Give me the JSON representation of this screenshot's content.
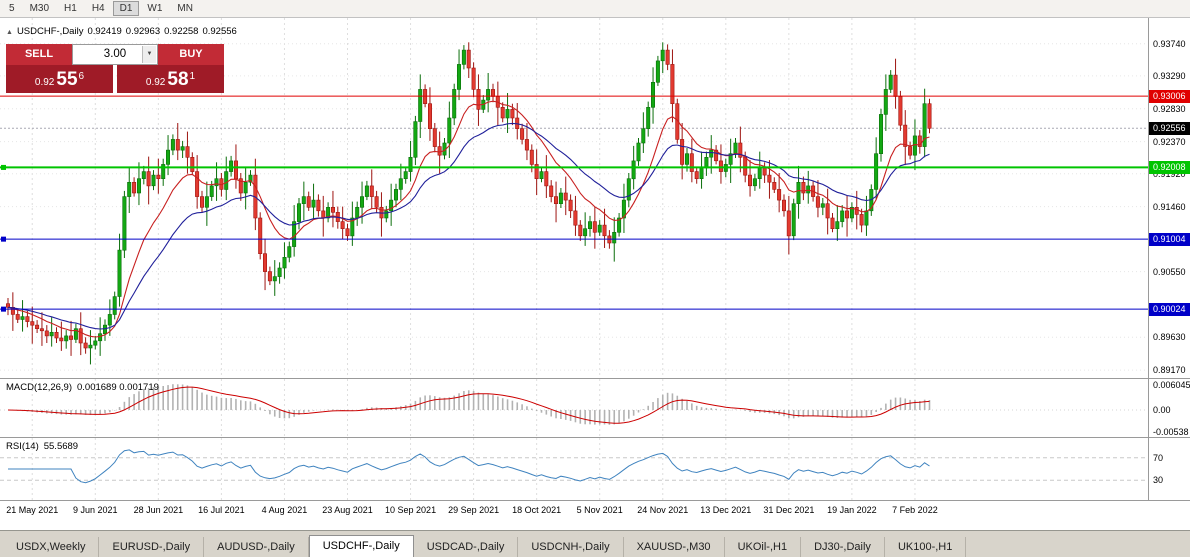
{
  "toolbar": {
    "timeframes": [
      "5",
      "M30",
      "H1",
      "H4",
      "D1",
      "W1",
      "MN"
    ],
    "active": "D1"
  },
  "icons": {
    "trade_panel_toggle": "▲",
    "lot_dropdown": "▼"
  },
  "header": {
    "symbol": "USDCHF-,Daily",
    "open": "0.92419",
    "high": "0.92963",
    "low": "0.92258",
    "close": "0.92556"
  },
  "trade_panel": {
    "sell_label": "SELL",
    "buy_label": "BUY",
    "lot": "3.00",
    "sell_price": {
      "prefix": "0.92",
      "big": "55",
      "sup": "6"
    },
    "buy_price": {
      "prefix": "0.92",
      "big": "58",
      "sup": "1"
    },
    "button_color": "#c22b36",
    "price_color": "#9f1b27"
  },
  "macd": {
    "name": "MACD(12,26,9)",
    "values_text": "0.001689 0.001719",
    "fast": 12,
    "slow": 26,
    "signal": 9,
    "axis_labels": [
      "0.006045",
      "0.00",
      "-0.00538"
    ],
    "axis_values": [
      0.006045,
      0,
      -0.00538
    ],
    "histogram_color": "#b2b2b2",
    "signal_color": "#cc0000"
  },
  "rsi": {
    "name": "RSI(14)",
    "value_text": "55.5689",
    "period": 14,
    "levels": [
      70,
      30
    ],
    "color": "#3f83bf"
  },
  "tabs": {
    "items": [
      "USDX,Weekly",
      "EURUSD-,Daily",
      "AUDUSD-,Daily",
      "USDCHF-,Daily",
      "USDCAD-,Daily",
      "USDCNH-,Daily",
      "XAUUSD-,M30",
      "UKOil-,H1",
      "DJ30-,Daily",
      "UK100-,H1"
    ],
    "active_index": 3
  },
  "chart_data": {
    "type": "candlestick",
    "symbol": "USDCHF-",
    "timeframe": "Daily",
    "current_price": {
      "value": 0.92556,
      "label": "0.92556",
      "badge_color": "#000000"
    },
    "levels": [
      {
        "value": 0.93006,
        "label": "0.93006",
        "color": "#e00000",
        "thickness": 1,
        "left_marker": false
      },
      {
        "value": 0.92008,
        "label": "0.92008",
        "color": "#00c400",
        "thickness": 2,
        "left_marker": true
      },
      {
        "value": 0.91004,
        "label": "0.91004",
        "color": "#0000c8",
        "thickness": 1,
        "left_marker": true
      },
      {
        "value": 0.90024,
        "label": "0.90024",
        "color": "#0000c8",
        "thickness": 1,
        "left_marker": true
      }
    ],
    "y_axis": {
      "ticks": [
        0.9374,
        0.9329,
        0.9283,
        0.9237,
        0.9192,
        0.9146,
        0.9055,
        0.8963,
        0.8917
      ],
      "labels": [
        "0.93740",
        "0.93290",
        "0.92830",
        "0.92370",
        "0.91920",
        "0.91460",
        "0.90550",
        "0.89630",
        "0.89170"
      ]
    },
    "x_axis": {
      "labels": [
        "21 May 2021",
        "9 Jun 2021",
        "28 Jun 2021",
        "16 Jul 2021",
        "4 Aug 2021",
        "23 Aug 2021",
        "10 Sep 2021",
        "29 Sep 2021",
        "18 Oct 2021",
        "5 Nov 2021",
        "24 Nov 2021",
        "13 Dec 2021",
        "31 Dec 2021",
        "19 Jan 2022",
        "7 Feb 2022"
      ],
      "first_tick_index": 5,
      "tick_step": 13
    },
    "moving_averages": [
      {
        "period": 12,
        "color": "#c82020"
      },
      {
        "period": 26,
        "color": "#20209a"
      }
    ],
    "candle_colors": {
      "up": {
        "fill": "#13a813",
        "stroke": "#0b6e0b"
      },
      "down": {
        "fill": "#e23a30",
        "stroke": "#9e1410"
      }
    },
    "first_open": 0.901,
    "high_clamp": 0.9376,
    "low_clamp": 0.8925,
    "wick_pattern": [
      0.0008,
      0.0015,
      0.0005,
      0.0021,
      0.0011,
      0.0026,
      0.0007,
      0.0017,
      0.001,
      0.0023,
      0.0006,
      0.0014
    ],
    "closes": [
      0.9005,
      0.8995,
      0.8988,
      0.8992,
      0.8985,
      0.898,
      0.8975,
      0.8972,
      0.8965,
      0.897,
      0.8962,
      0.8958,
      0.8965,
      0.896,
      0.8975,
      0.8955,
      0.8948,
      0.8952,
      0.8958,
      0.8968,
      0.898,
      0.8995,
      0.902,
      0.9085,
      0.916,
      0.918,
      0.9165,
      0.9185,
      0.9195,
      0.9175,
      0.919,
      0.9185,
      0.9205,
      0.9225,
      0.924,
      0.9225,
      0.923,
      0.9215,
      0.9195,
      0.916,
      0.9145,
      0.916,
      0.9175,
      0.9185,
      0.917,
      0.9195,
      0.921,
      0.9185,
      0.9165,
      0.918,
      0.919,
      0.913,
      0.908,
      0.9055,
      0.9042,
      0.9048,
      0.906,
      0.9075,
      0.909,
      0.9125,
      0.915,
      0.916,
      0.9145,
      0.9155,
      0.914,
      0.913,
      0.9145,
      0.9138,
      0.9125,
      0.9115,
      0.9105,
      0.913,
      0.9145,
      0.916,
      0.9175,
      0.916,
      0.9145,
      0.913,
      0.914,
      0.9155,
      0.917,
      0.9185,
      0.9195,
      0.9215,
      0.9265,
      0.931,
      0.929,
      0.9255,
      0.923,
      0.9218,
      0.9235,
      0.927,
      0.931,
      0.9345,
      0.9365,
      0.934,
      0.931,
      0.9282,
      0.9295,
      0.931,
      0.93,
      0.9285,
      0.927,
      0.9282,
      0.927,
      0.9255,
      0.924,
      0.9225,
      0.9205,
      0.9185,
      0.9195,
      0.9175,
      0.916,
      0.915,
      0.9165,
      0.9155,
      0.914,
      0.912,
      0.9105,
      0.9115,
      0.9125,
      0.911,
      0.912,
      0.9105,
      0.9095,
      0.911,
      0.913,
      0.9155,
      0.9185,
      0.921,
      0.9235,
      0.9255,
      0.9285,
      0.932,
      0.935,
      0.9365,
      0.9345,
      0.929,
      0.924,
      0.9205,
      0.922,
      0.9195,
      0.9185,
      0.92,
      0.9215,
      0.9225,
      0.921,
      0.9195,
      0.9205,
      0.922,
      0.9235,
      0.9215,
      0.919,
      0.9175,
      0.9185,
      0.92,
      0.919,
      0.918,
      0.917,
      0.9155,
      0.914,
      0.9105,
      0.915,
      0.918,
      0.9165,
      0.9175,
      0.916,
      0.9145,
      0.915,
      0.913,
      0.9115,
      0.9125,
      0.914,
      0.913,
      0.9145,
      0.9135,
      0.912,
      0.914,
      0.917,
      0.922,
      0.9275,
      0.931,
      0.933,
      0.93,
      0.926,
      0.923,
      0.9218,
      0.9245,
      0.923,
      0.929,
      0.92556
    ]
  }
}
